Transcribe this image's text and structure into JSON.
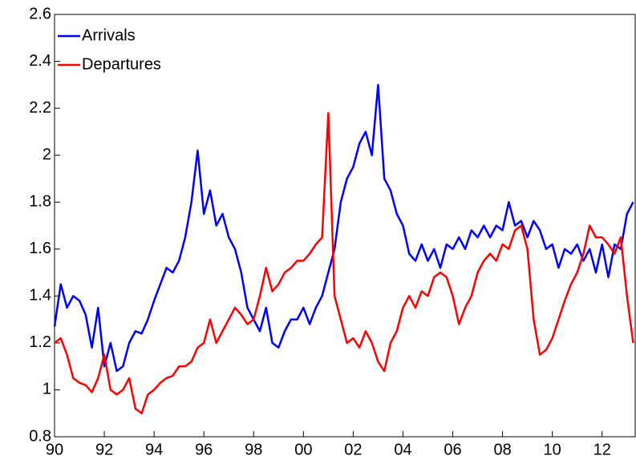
{
  "chart_data": {
    "type": "line",
    "x": [
      1990,
      1990.25,
      1990.5,
      1990.75,
      1991,
      1991.25,
      1991.5,
      1991.75,
      1992,
      1992.25,
      1992.5,
      1992.75,
      1993,
      1993.25,
      1993.5,
      1993.75,
      1994,
      1994.25,
      1994.5,
      1994.75,
      1995,
      1995.25,
      1995.5,
      1995.75,
      1996,
      1996.25,
      1996.5,
      1996.75,
      1997,
      1997.25,
      1997.5,
      1997.75,
      1998,
      1998.25,
      1998.5,
      1998.75,
      1999,
      1999.25,
      1999.5,
      1999.75,
      2000,
      2000.25,
      2000.5,
      2000.75,
      2001,
      2001.25,
      2001.5,
      2001.75,
      2002,
      2002.25,
      2002.5,
      2002.75,
      2003,
      2003.25,
      2003.5,
      2003.75,
      2004,
      2004.25,
      2004.5,
      2004.75,
      2005,
      2005.25,
      2005.5,
      2005.75,
      2006,
      2006.25,
      2006.5,
      2006.75,
      2007,
      2007.25,
      2007.5,
      2007.75,
      2008,
      2008.25,
      2008.5,
      2008.75,
      2009,
      2009.25,
      2009.5,
      2009.75,
      2010,
      2010.25,
      2010.5,
      2010.75,
      2011,
      2011.25,
      2011.5,
      2011.75,
      2012,
      2012.25,
      2012.5,
      2012.75,
      2013,
      2013.25
    ],
    "series": [
      {
        "name": "Arrivals",
        "color": "#0000ff",
        "values": [
          1.27,
          1.45,
          1.35,
          1.4,
          1.38,
          1.32,
          1.18,
          1.35,
          1.1,
          1.2,
          1.08,
          1.1,
          1.2,
          1.25,
          1.24,
          1.3,
          1.38,
          1.45,
          1.52,
          1.5,
          1.55,
          1.65,
          1.8,
          2.02,
          1.75,
          1.85,
          1.7,
          1.75,
          1.65,
          1.6,
          1.5,
          1.35,
          1.3,
          1.25,
          1.35,
          1.2,
          1.18,
          1.25,
          1.3,
          1.3,
          1.35,
          1.28,
          1.35,
          1.4,
          1.5,
          1.6,
          1.8,
          1.9,
          1.95,
          2.05,
          2.1,
          2.0,
          2.3,
          1.9,
          1.85,
          1.75,
          1.7,
          1.58,
          1.55,
          1.62,
          1.55,
          1.6,
          1.52,
          1.62,
          1.6,
          1.65,
          1.6,
          1.68,
          1.65,
          1.7,
          1.65,
          1.7,
          1.68,
          1.8,
          1.7,
          1.72,
          1.65,
          1.72,
          1.68,
          1.6,
          1.62,
          1.52,
          1.6,
          1.58,
          1.62,
          1.55,
          1.6,
          1.5,
          1.62,
          1.48,
          1.62,
          1.6,
          1.75,
          1.8
        ]
      },
      {
        "name": "Departures",
        "color": "#ff0000",
        "values": [
          1.2,
          1.22,
          1.15,
          1.05,
          1.03,
          1.02,
          0.99,
          1.05,
          1.15,
          1.0,
          0.98,
          1.0,
          1.05,
          0.92,
          0.9,
          0.98,
          1.0,
          1.03,
          1.05,
          1.06,
          1.1,
          1.1,
          1.12,
          1.18,
          1.2,
          1.3,
          1.2,
          1.25,
          1.3,
          1.35,
          1.32,
          1.28,
          1.3,
          1.4,
          1.52,
          1.42,
          1.45,
          1.5,
          1.52,
          1.55,
          1.55,
          1.58,
          1.62,
          1.65,
          2.18,
          1.4,
          1.3,
          1.2,
          1.22,
          1.18,
          1.25,
          1.2,
          1.12,
          1.08,
          1.2,
          1.25,
          1.35,
          1.4,
          1.35,
          1.42,
          1.4,
          1.48,
          1.5,
          1.48,
          1.4,
          1.28,
          1.35,
          1.4,
          1.5,
          1.55,
          1.58,
          1.55,
          1.62,
          1.6,
          1.68,
          1.7,
          1.6,
          1.3,
          1.15,
          1.17,
          1.22,
          1.3,
          1.38,
          1.45,
          1.5,
          1.58,
          1.7,
          1.65,
          1.65,
          1.62,
          1.58,
          1.65,
          1.4,
          1.2
        ]
      }
    ],
    "xlim": [
      1990,
      2013.33
    ],
    "xticks": [
      {
        "value": 1990,
        "label": "90"
      },
      {
        "value": 1992,
        "label": "92"
      },
      {
        "value": 1994,
        "label": "94"
      },
      {
        "value": 1996,
        "label": "96"
      },
      {
        "value": 1998,
        "label": "98"
      },
      {
        "value": 2000,
        "label": "00"
      },
      {
        "value": 2002,
        "label": "02"
      },
      {
        "value": 2004,
        "label": "04"
      },
      {
        "value": 2006,
        "label": "06"
      },
      {
        "value": 2008,
        "label": "08"
      },
      {
        "value": 2010,
        "label": "10"
      },
      {
        "value": 2012,
        "label": "12"
      }
    ],
    "ylim": [
      0.8,
      2.6
    ],
    "yticks": [
      0.8,
      1,
      1.2,
      1.4,
      1.6,
      1.8,
      2,
      2.2,
      2.4,
      2.6
    ],
    "grid": false,
    "legend": "upper left"
  }
}
